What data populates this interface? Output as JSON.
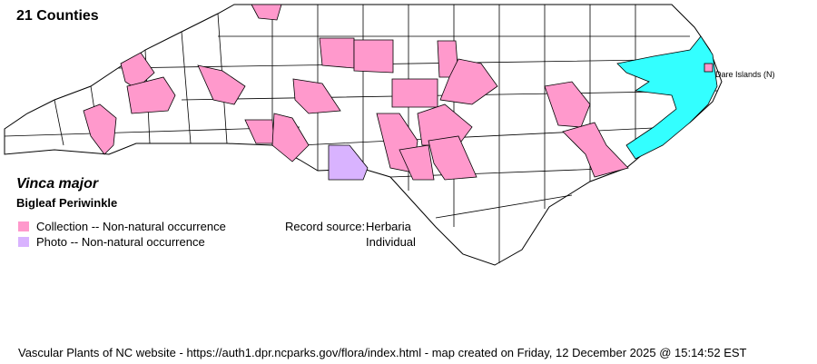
{
  "title": "21 Counties",
  "species": {
    "scientific_name": "Vinca major",
    "common_name": "Bigleaf Periwinkle"
  },
  "legend": [
    {
      "label": "Collection -- Non-natural occurrence",
      "color": "#ff99cc"
    },
    {
      "label": "Photo -- Non-natural occurrence",
      "color": "#d9b3ff"
    }
  ],
  "record_source": {
    "label": "Record source:",
    "values": [
      "Herbaria",
      "Individual"
    ]
  },
  "map": {
    "water_color": "#33ffff",
    "county_fill": "#ffffff",
    "island_label": "Dare Islands (N)"
  },
  "footer": "Vascular Plants of NC website - https://auth1.dpr.ncparks.gov/flora/index.html - map created on Friday, 12 December 2025 @ 15:14:52 EST"
}
